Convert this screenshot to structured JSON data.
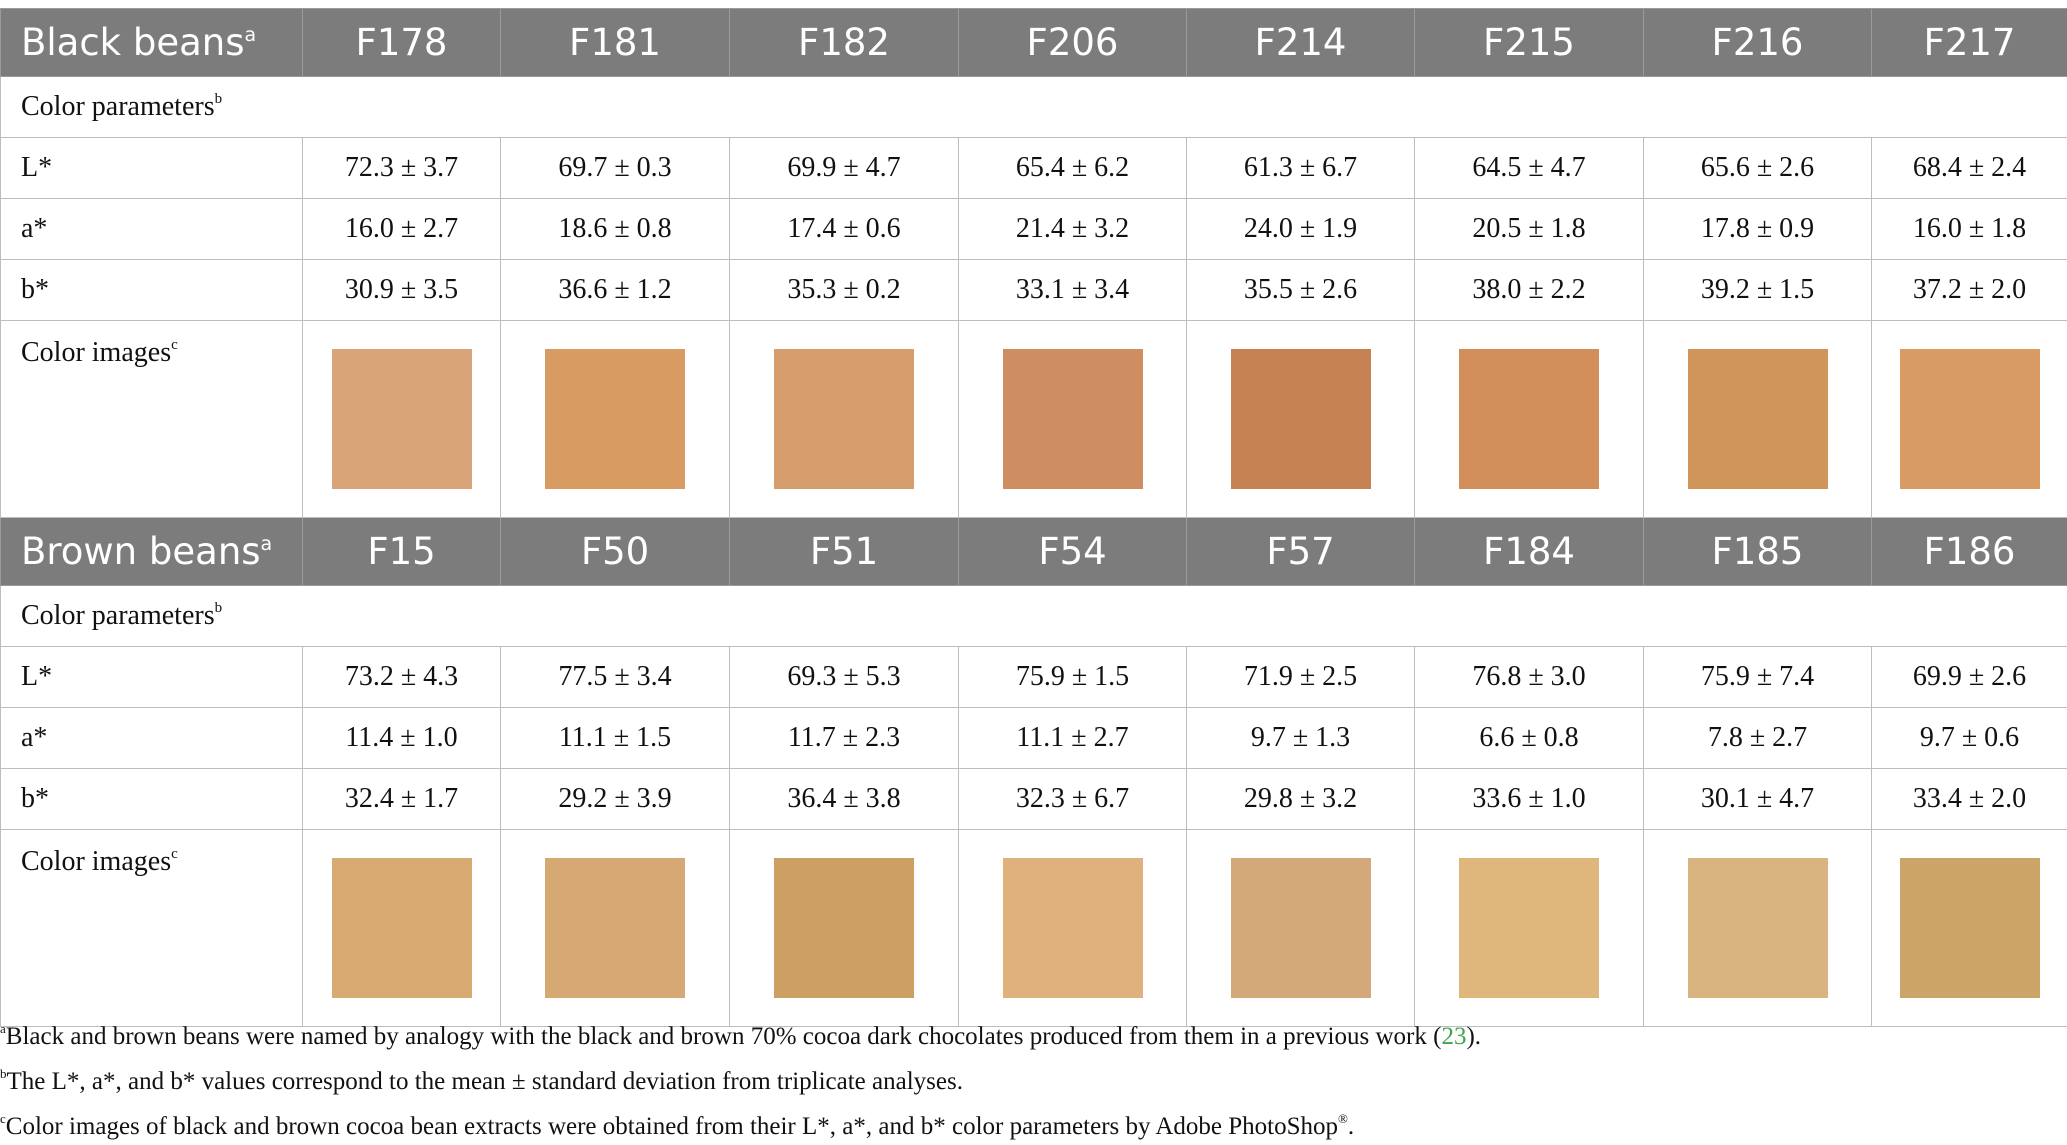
{
  "sections": [
    {
      "group_label": "Black beans",
      "group_sup": "a",
      "samples": [
        "F178",
        "F181",
        "F182",
        "F206",
        "F214",
        "F215",
        "F216",
        "F217"
      ],
      "params_label": "Color parameters",
      "params_sup": "b",
      "rows": [
        {
          "label": "L*",
          "values": [
            "72.3 ± 3.7",
            "69.7 ± 0.3",
            "69.9 ± 4.7",
            "65.4 ± 6.2",
            "61.3 ± 6.7",
            "64.5 ± 4.7",
            "65.6 ± 2.6",
            "68.4 ± 2.4"
          ]
        },
        {
          "label": "a*",
          "values": [
            "16.0 ± 2.7",
            "18.6 ± 0.8",
            "17.4 ± 0.6",
            "21.4 ± 3.2",
            "24.0 ± 1.9",
            "20.5 ± 1.8",
            "17.8 ± 0.9",
            "16.0 ± 1.8"
          ]
        },
        {
          "label": "b*",
          "values": [
            "30.9 ± 3.5",
            "36.6 ± 1.2",
            "35.3 ± 0.2",
            "33.1 ± 3.4",
            "35.5 ± 2.6",
            "38.0 ± 2.2",
            "39.2 ± 1.5",
            "37.2 ± 2.0"
          ]
        }
      ],
      "images_label": "Color images",
      "images_sup": "c",
      "swatch_colors": [
        "#d9a478",
        "#d89b62",
        "#d79e6d",
        "#cf8e62",
        "#c78253",
        "#d28f5b",
        "#cf955b",
        "#d79b63"
      ]
    },
    {
      "group_label": "Brown beans",
      "group_sup": "a",
      "samples": [
        "F15",
        "F50",
        "F51",
        "F54",
        "F57",
        "F184",
        "F185",
        "F186"
      ],
      "params_label": "Color parameters",
      "params_sup": "b",
      "rows": [
        {
          "label": "L*",
          "values": [
            "73.2 ± 4.3",
            "77.5 ± 3.4",
            "69.3 ± 5.3",
            "75.9 ± 1.5",
            "71.9 ± 2.5",
            "76.8 ± 3.0",
            "75.9 ± 7.4",
            "69.9 ± 2.6"
          ]
        },
        {
          "label": "a*",
          "values": [
            "11.4 ± 1.0",
            "11.1 ± 1.5",
            "11.7 ± 2.3",
            "11.1 ± 2.7",
            "9.7 ± 1.3",
            "6.6 ± 0.8",
            "7.8 ± 2.7",
            "9.7 ± 0.6"
          ]
        },
        {
          "label": "b*",
          "values": [
            "32.4 ± 1.7",
            "29.2 ± 3.9",
            "36.4 ± 3.8",
            "32.3 ± 6.7",
            "29.8 ± 3.2",
            "33.6 ± 1.0",
            "30.1 ± 4.7",
            "33.4 ± 2.0"
          ]
        }
      ],
      "images_label": "Color images",
      "images_sup": "c",
      "swatch_colors": [
        "#d7aa72",
        "#d6a873",
        "#cc9f63",
        "#dfb27d",
        "#d3a97a",
        "#dfb77d",
        "#d9b480",
        "#cda468"
      ]
    }
  ],
  "footnotes": {
    "a": {
      "sup": "a",
      "text_before": "Black and brown beans were named by analogy with the black and brown 70% cocoa dark chocolates produced from them in a previous work (",
      "ref": "23",
      "text_after": ")."
    },
    "b": {
      "sup": "b",
      "text": "The L*, a*, and b* values correspond to the mean ± standard deviation from triplicate analyses."
    },
    "c": {
      "sup": "c",
      "text": "Color images of black and brown cocoa bean extracts were obtained from their L*, a*, and b* color parameters by Adobe PhotoShop",
      "reg": "®",
      "end": "."
    }
  },
  "colors": {
    "header_bg": "#7b7c7b",
    "ref_link": "#3fa34d"
  }
}
